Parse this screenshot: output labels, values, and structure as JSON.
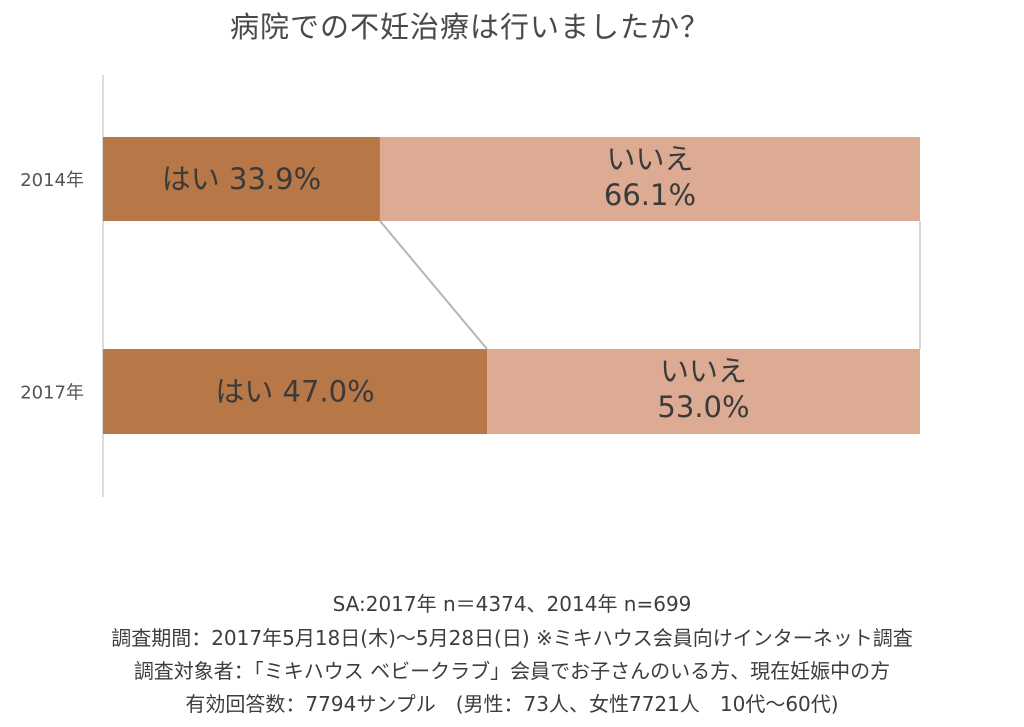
{
  "title": "病院での不妊治療は行いましたか？",
  "chart_data": {
    "type": "bar",
    "orientation": "horizontal",
    "stacked_percent": true,
    "categories": [
      "2014年",
      "2017年"
    ],
    "series": [
      {
        "name": "はい",
        "values": [
          33.9,
          47.0
        ],
        "color": "#b87747"
      },
      {
        "name": "いいえ",
        "values": [
          66.1,
          53.0
        ],
        "color": "#ddab93"
      }
    ],
    "data_labels": [
      {
        "category": "2014年",
        "yes": "はい 33.9%",
        "no_lines": [
          "いいえ",
          "66.1%"
        ]
      },
      {
        "category": "2017年",
        "yes": "はい 47.0%",
        "no_lines": [
          "いいえ",
          "53.0%"
        ]
      }
    ],
    "xlim": [
      0,
      100
    ],
    "connector_lines": true
  },
  "footer": {
    "line1": "SA:2017年 n＝4374、2014年 n=699",
    "line2": "調査期間：2017年5月18日(木)～5月28日(日) ※ミキハウス会員向けインターネット調査",
    "line3": "調査対象者：「ミキハウス ベビークラブ」会員でお子さんのいる方、現在妊娠中の方",
    "line4": "有効回答数：7794サンプル　(男性：73人、女性7721人　10代～60代)"
  }
}
